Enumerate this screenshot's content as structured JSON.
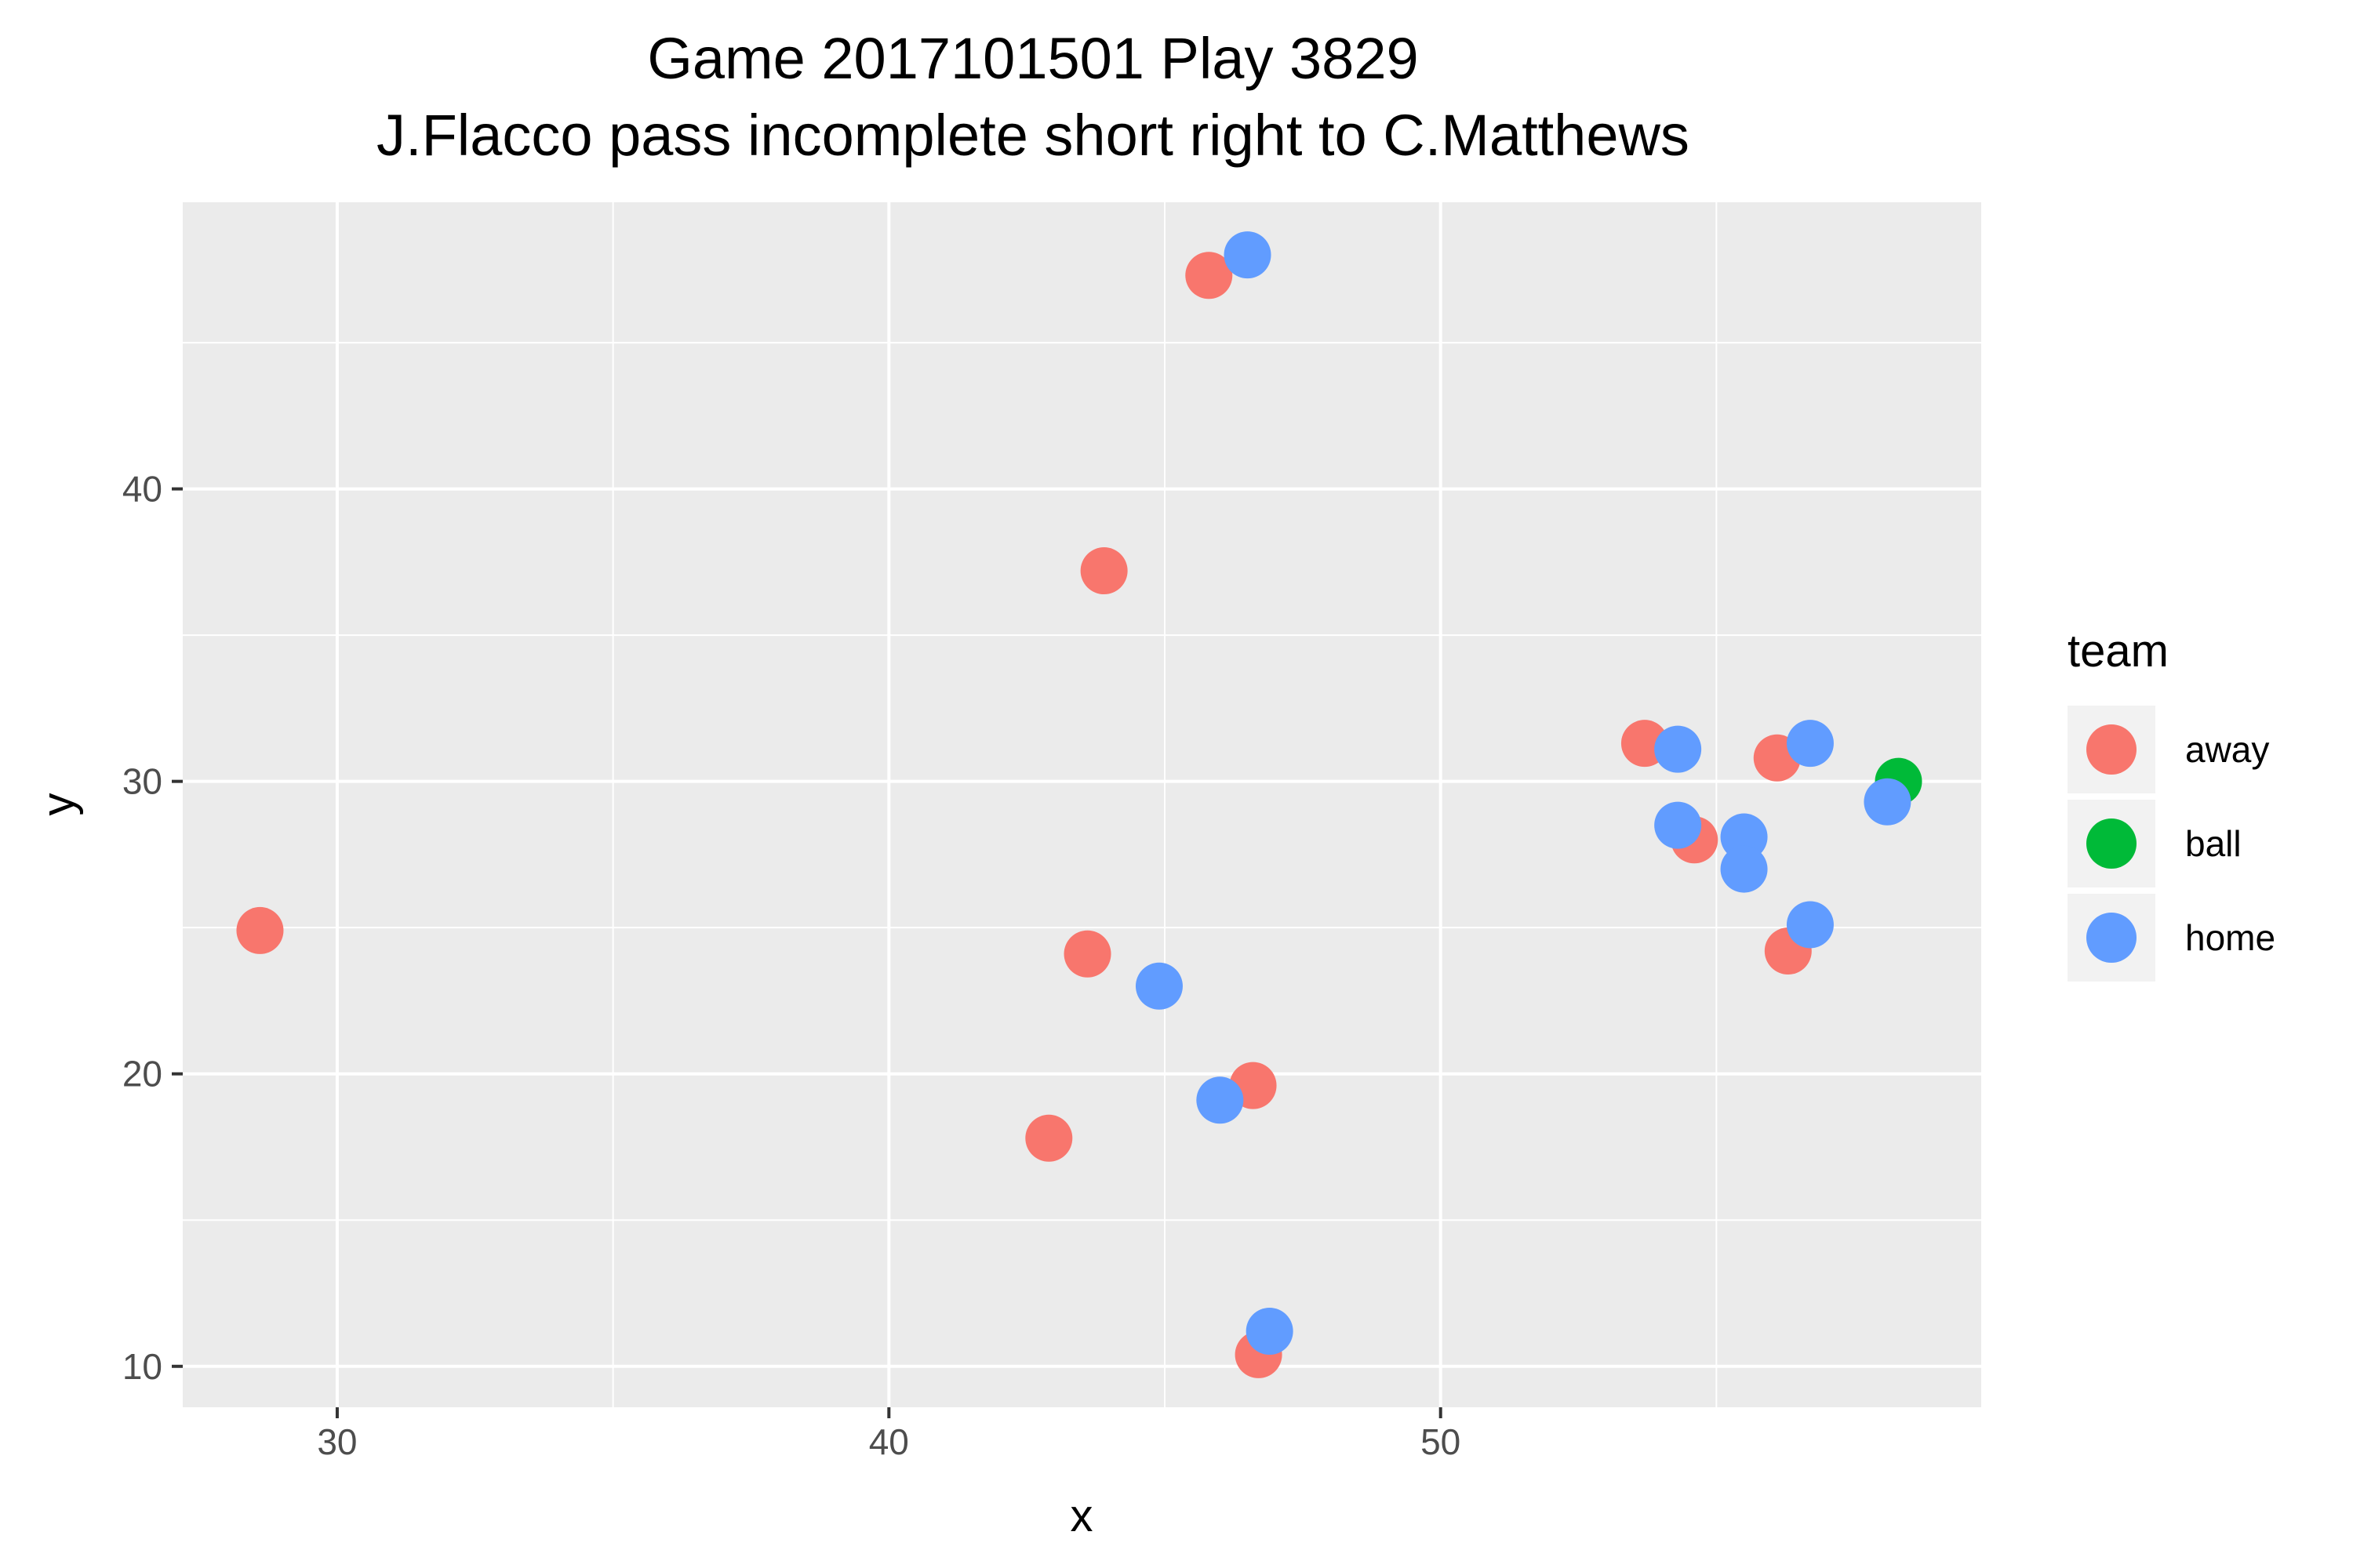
{
  "chart_data": {
    "type": "scatter",
    "title": "Game 2017101501 Play 3829",
    "subtitle": "J.Flacco pass incomplete short right to C.Matthews",
    "xlabel": "x",
    "ylabel": "y",
    "xlim": [
      27.2,
      59.8
    ],
    "ylim": [
      8.6,
      49.8
    ],
    "x_ticks": [
      30,
      40,
      50
    ],
    "y_ticks": [
      10,
      20,
      30,
      40
    ],
    "x_tick_labels": [
      "30",
      "40",
      "50"
    ],
    "y_tick_labels": [
      "10",
      "20",
      "30",
      "40"
    ],
    "grid": true,
    "legend": {
      "title": "team",
      "position": "right",
      "entries": [
        "away",
        "ball",
        "home"
      ]
    },
    "series": [
      {
        "name": "away",
        "color": "#F8766D",
        "points": [
          {
            "x": 28.6,
            "y": 24.9
          },
          {
            "x": 45.8,
            "y": 47.3
          },
          {
            "x": 43.9,
            "y": 37.2
          },
          {
            "x": 43.6,
            "y": 24.1
          },
          {
            "x": 46.6,
            "y": 19.6
          },
          {
            "x": 42.9,
            "y": 17.8
          },
          {
            "x": 46.7,
            "y": 10.4
          },
          {
            "x": 53.7,
            "y": 31.3
          },
          {
            "x": 56.1,
            "y": 30.8
          },
          {
            "x": 54.6,
            "y": 28.0
          },
          {
            "x": 56.3,
            "y": 24.2
          }
        ]
      },
      {
        "name": "ball",
        "color": "#00BA38",
        "points": [
          {
            "x": 58.3,
            "y": 30.0
          }
        ]
      },
      {
        "name": "home",
        "color": "#619CFF",
        "points": [
          {
            "x": 46.5,
            "y": 48.0
          },
          {
            "x": 44.9,
            "y": 23.0
          },
          {
            "x": 46.0,
            "y": 19.1
          },
          {
            "x": 46.9,
            "y": 11.2
          },
          {
            "x": 54.3,
            "y": 31.1
          },
          {
            "x": 56.7,
            "y": 31.3
          },
          {
            "x": 58.1,
            "y": 29.3
          },
          {
            "x": 54.3,
            "y": 28.5
          },
          {
            "x": 55.5,
            "y": 28.1
          },
          {
            "x": 55.5,
            "y": 27.0
          },
          {
            "x": 56.7,
            "y": 25.1
          }
        ]
      }
    ]
  }
}
